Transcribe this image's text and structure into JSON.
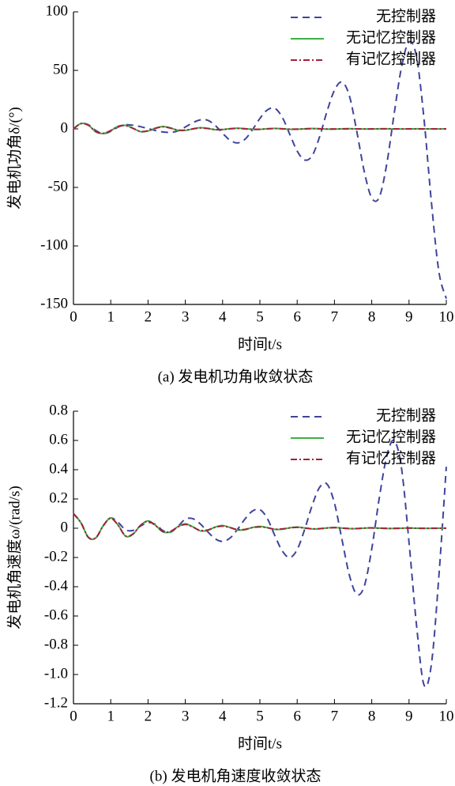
{
  "chart_data": [
    {
      "type": "line",
      "caption": "(a) 发电机功角收敛状态",
      "xlabel": "时间t/s",
      "ylabel": "发电机功角δ/(°)",
      "xlim": [
        0,
        10
      ],
      "ylim": [
        -150,
        100
      ],
      "xticks": [
        0,
        1,
        2,
        3,
        4,
        5,
        6,
        7,
        8,
        9,
        10
      ],
      "yticks": [
        100,
        50,
        0,
        -50,
        -100,
        -150
      ],
      "legend": "upper right",
      "x": [
        0,
        0.2,
        0.4,
        0.6,
        0.8,
        1,
        1.2,
        1.4,
        1.6,
        1.8,
        2,
        2.2,
        2.4,
        2.6,
        2.8,
        3,
        3.2,
        3.4,
        3.6,
        3.8,
        4,
        4.2,
        4.4,
        4.6,
        4.8,
        5,
        5.2,
        5.4,
        5.6,
        5.8,
        6,
        6.2,
        6.4,
        6.6,
        6.8,
        7,
        7.2,
        7.4,
        7.6,
        7.8,
        8,
        8.2,
        8.4,
        8.6,
        8.8,
        9,
        9.2,
        9.4,
        9.6,
        9.8,
        10
      ],
      "series": [
        {
          "name": "无控制器",
          "color": "#40449a",
          "style": "dashed",
          "values": [
            0,
            4.5,
            3.5,
            -1.4,
            -4,
            -2.1,
            1.6,
            3.5,
            3.1,
            1.9,
            0.25,
            -1.4,
            -2.6,
            -3,
            -1.7,
            1.6,
            5.25,
            7.7,
            7.4,
            3,
            -3.7,
            -9.7,
            -12,
            -8.9,
            -0.75,
            8.9,
            16.2,
            17.6,
            9.9,
            -4.5,
            -18.9,
            -26.6,
            -23,
            -6.9,
            14.9,
            33,
            40,
            28.3,
            -2.3,
            -36.5,
            -59,
            -58.5,
            -30.5,
            12.7,
            53,
            74.3,
            61.8,
            9,
            -62.5,
            -121.9,
            -145
          ]
        },
        {
          "name": "无记忆控制器",
          "color": "#3cb043",
          "style": "solid",
          "values": [
            0,
            4.6,
            3.2,
            -2.5,
            -3.9,
            -1.5,
            2.2,
            3,
            0.5,
            -2.4,
            -1.8,
            0.6,
            2,
            0.8,
            -1.2,
            -1.3,
            0,
            1,
            0.4,
            -0.7,
            -0.6,
            0.2,
            0.6,
            0.2,
            -0.4,
            -0.4,
            0.1,
            0.4,
            0.1,
            -0.3,
            -0.3,
            0.1,
            0.3,
            0.1,
            -0.2,
            -0.2,
            0.1,
            0.2,
            0,
            -0.1,
            -0.1,
            0.1,
            0.1,
            0,
            -0.1,
            0,
            0.1,
            0,
            0,
            0,
            0
          ]
        },
        {
          "name": "有记忆控制器",
          "color": "#a3203a",
          "style": "dashdot",
          "values": [
            0,
            4.5,
            3.1,
            -2.4,
            -3.8,
            -1.4,
            2.1,
            2.8,
            0.4,
            -2.2,
            -1.6,
            0.5,
            1.8,
            0.7,
            -1,
            -1.1,
            0,
            0.8,
            0.3,
            -0.5,
            -0.5,
            0.1,
            0.4,
            0.1,
            -0.3,
            -0.3,
            0.1,
            0.3,
            0.1,
            -0.2,
            -0.2,
            0,
            0.2,
            0.1,
            -0.1,
            -0.1,
            0,
            0.1,
            0,
            -0.1,
            0,
            0,
            0.1,
            0,
            0,
            0,
            0,
            0,
            0,
            0,
            0
          ]
        }
      ]
    },
    {
      "type": "line",
      "caption": "(b) 发电机角速度收敛状态",
      "xlabel": "时间t/s",
      "ylabel": "发电机角速度ω/(rad/s)",
      "xlim": [
        0,
        10
      ],
      "ylim": [
        -1.2,
        0.8
      ],
      "xticks": [
        0,
        1,
        2,
        3,
        4,
        5,
        6,
        7,
        8,
        9,
        10
      ],
      "yticks": [
        0.8,
        0.6,
        0.4,
        0.2,
        0,
        -0.2,
        -0.4,
        -0.6,
        -0.8,
        {
          "value": -1,
          "label": "-1.0"
        },
        -1.2
      ],
      "legend": "upper right",
      "x": [
        0,
        0.2,
        0.4,
        0.6,
        0.8,
        1,
        1.2,
        1.4,
        1.6,
        1.8,
        2,
        2.2,
        2.4,
        2.6,
        2.8,
        3,
        3.2,
        3.4,
        3.6,
        3.8,
        4,
        4.2,
        4.4,
        4.6,
        4.8,
        5,
        5.2,
        5.4,
        5.6,
        5.8,
        6,
        6.2,
        6.4,
        6.6,
        6.8,
        7,
        7.2,
        7.4,
        7.6,
        7.8,
        8,
        8.2,
        8.4,
        8.6,
        8.8,
        9,
        9.2,
        9.4,
        9.6,
        9.8,
        10
      ],
      "series": [
        {
          "name": "无控制器",
          "color": "#40449a",
          "style": "dashed",
          "values": [
            0.1,
            0.038,
            -0.063,
            -0.066,
            0.018,
            0.07,
            0.039,
            -0.011,
            -0.015,
            0.015,
            0.039,
            0.026,
            -0.016,
            -0.028,
            0.012,
            0.062,
            0.065,
            0.03,
            -0.024,
            -0.072,
            -0.09,
            -0.067,
            -0.008,
            0.063,
            0.117,
            0.127,
            0.066,
            -0.05,
            -0.155,
            -0.2,
            -0.146,
            -0.009,
            0.154,
            0.279,
            0.302,
            0.171,
            -0.075,
            -0.321,
            -0.452,
            -0.396,
            -0.142,
            0.203,
            0.489,
            0.6,
            0.407,
            -0.097,
            -0.66,
            -1.07,
            -0.93,
            -0.33,
            0.42
          ]
        },
        {
          "name": "无记忆控制器",
          "color": "#3cb043",
          "style": "solid",
          "values": [
            0.1,
            0.038,
            -0.063,
            -0.066,
            0.018,
            0.07,
            0.02,
            -0.055,
            -0.04,
            0.02,
            0.05,
            0.02,
            -0.025,
            -0.025,
            0.01,
            0.03,
            0.01,
            -0.018,
            -0.015,
            0.008,
            0.018,
            0.005,
            -0.012,
            -0.01,
            0.005,
            0.012,
            0.004,
            -0.008,
            -0.007,
            0.003,
            0.008,
            0.002,
            -0.005,
            -0.004,
            0.002,
            0.005,
            0.001,
            -0.003,
            -0.003,
            0.001,
            0.003,
            0.001,
            -0.002,
            -0.002,
            0,
            0.002,
            0,
            -0.001,
            -0.001,
            0,
            0.001
          ]
        },
        {
          "name": "有记忆控制器",
          "color": "#a3203a",
          "style": "dashdot",
          "values": [
            0.1,
            0.037,
            -0.062,
            -0.065,
            0.017,
            0.068,
            0.019,
            -0.053,
            -0.038,
            0.019,
            0.047,
            0.018,
            -0.023,
            -0.022,
            0.009,
            0.026,
            0.008,
            -0.015,
            -0.012,
            0.006,
            0.014,
            0.004,
            -0.009,
            -0.008,
            0.004,
            0.009,
            0.003,
            -0.006,
            -0.005,
            0.002,
            0.006,
            0.001,
            -0.004,
            -0.003,
            0.001,
            0.004,
            0.001,
            -0.002,
            -0.002,
            0.001,
            0.002,
            0,
            -0.001,
            -0.001,
            0,
            0.001,
            0,
            -0.001,
            0,
            0,
            0
          ]
        }
      ]
    }
  ]
}
